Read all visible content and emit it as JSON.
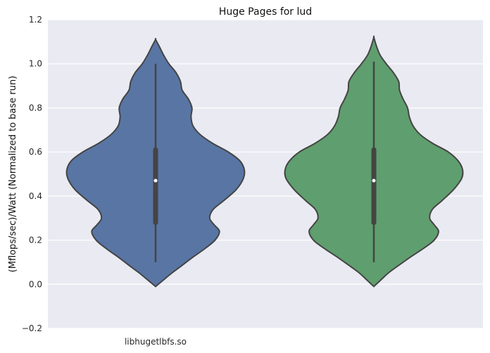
{
  "chart_data": {
    "type": "violin",
    "title": "Huge Pages for lud",
    "ylabel": "(Mflops/sec)/Watt (Normalized to base run)",
    "xlabel": "",
    "ylim": [
      -0.2,
      1.2
    ],
    "yticks": [
      "−0.2",
      "0.0",
      "0.2",
      "0.4",
      "0.6",
      "0.8",
      "1.0",
      "1.2"
    ],
    "categories": [
      "libhugetlbfs.so",
      ""
    ],
    "grid": true,
    "series": [
      {
        "category_index": 0,
        "color": "#5875a4",
        "whisker": [
          0.1,
          1.0
        ],
        "quartiles": [
          0.28,
          0.61
        ],
        "median": 0.47,
        "density_profile": [
          [
            -0.01,
            0.0
          ],
          [
            0.02,
            0.09
          ],
          [
            0.05,
            0.18
          ],
          [
            0.08,
            0.28
          ],
          [
            0.12,
            0.41
          ],
          [
            0.16,
            0.55
          ],
          [
            0.2,
            0.67
          ],
          [
            0.24,
            0.72
          ],
          [
            0.27,
            0.66
          ],
          [
            0.3,
            0.61
          ],
          [
            0.34,
            0.65
          ],
          [
            0.38,
            0.77
          ],
          [
            0.43,
            0.91
          ],
          [
            0.48,
            0.99
          ],
          [
            0.52,
            1.0
          ],
          [
            0.56,
            0.95
          ],
          [
            0.6,
            0.82
          ],
          [
            0.64,
            0.64
          ],
          [
            0.68,
            0.5
          ],
          [
            0.72,
            0.42
          ],
          [
            0.76,
            0.4
          ],
          [
            0.8,
            0.41
          ],
          [
            0.84,
            0.37
          ],
          [
            0.88,
            0.3
          ],
          [
            0.92,
            0.28
          ],
          [
            0.96,
            0.23
          ],
          [
            1.0,
            0.15
          ],
          [
            1.04,
            0.09
          ],
          [
            1.08,
            0.04
          ],
          [
            1.11,
            0.0
          ]
        ]
      },
      {
        "category_index": 1,
        "color": "#5f9e6e",
        "whisker": [
          0.1,
          1.01
        ],
        "quartiles": [
          0.28,
          0.61
        ],
        "median": 0.47,
        "density_profile": [
          [
            -0.01,
            0.0
          ],
          [
            0.02,
            0.08
          ],
          [
            0.05,
            0.16
          ],
          [
            0.08,
            0.26
          ],
          [
            0.12,
            0.4
          ],
          [
            0.16,
            0.55
          ],
          [
            0.2,
            0.68
          ],
          [
            0.24,
            0.73
          ],
          [
            0.27,
            0.68
          ],
          [
            0.3,
            0.63
          ],
          [
            0.34,
            0.66
          ],
          [
            0.38,
            0.77
          ],
          [
            0.43,
            0.9
          ],
          [
            0.48,
            0.99
          ],
          [
            0.52,
            1.0
          ],
          [
            0.56,
            0.95
          ],
          [
            0.6,
            0.84
          ],
          [
            0.64,
            0.66
          ],
          [
            0.68,
            0.52
          ],
          [
            0.72,
            0.44
          ],
          [
            0.76,
            0.4
          ],
          [
            0.8,
            0.38
          ],
          [
            0.84,
            0.33
          ],
          [
            0.88,
            0.29
          ],
          [
            0.92,
            0.28
          ],
          [
            0.96,
            0.22
          ],
          [
            1.0,
            0.14
          ],
          [
            1.04,
            0.07
          ],
          [
            1.08,
            0.03
          ],
          [
            1.12,
            0.0
          ]
        ]
      }
    ]
  }
}
